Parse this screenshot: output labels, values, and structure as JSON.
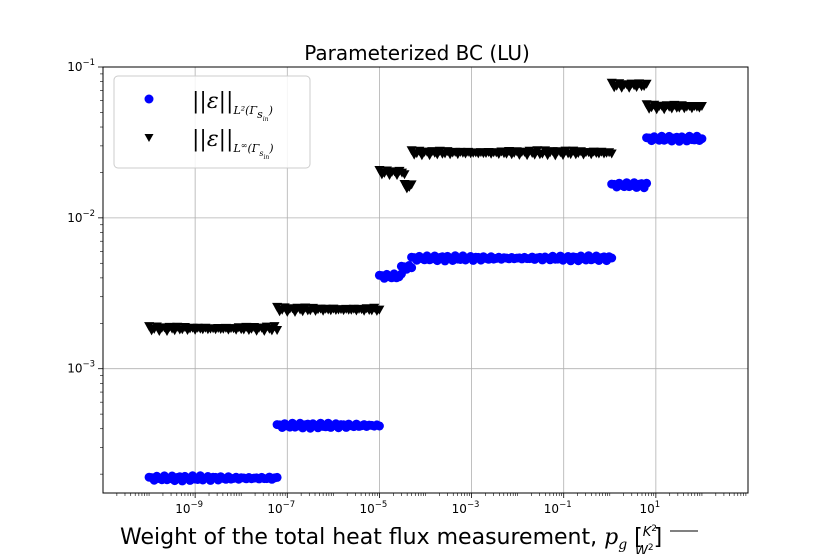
{
  "chart_data": {
    "type": "scatter",
    "title": "Parameterized BC (LU)",
    "xlabel": "Weight of the total heat flux measurement, p_g [K²/W²]",
    "xscale": "log",
    "yscale": "log",
    "xlim": [
      1e-11,
      1000
    ],
    "ylim": [
      0.00015,
      0.1
    ],
    "grid": true,
    "legend_position": "upper left",
    "x_ticks": [
      {
        "value": 1e-09,
        "base": "10",
        "exp": "−9"
      },
      {
        "value": 1e-07,
        "base": "10",
        "exp": "−7"
      },
      {
        "value": 1e-05,
        "base": "10",
        "exp": "−5"
      },
      {
        "value": 0.001,
        "base": "10",
        "exp": "−3"
      },
      {
        "value": 0.1,
        "base": "10",
        "exp": "−1"
      },
      {
        "value": 10,
        "base": "10",
        "exp": "1"
      }
    ],
    "y_ticks": [
      {
        "value": 0.001,
        "base": "10",
        "exp": "−3"
      },
      {
        "value": 0.01,
        "base": "10",
        "exp": "−2"
      },
      {
        "value": 0.1,
        "base": "10",
        "exp": "−1"
      }
    ],
    "series": [
      {
        "name": "||ε||_{L²(Γ_{s_in})}",
        "legend_main": "||ε||",
        "legend_sub": "L²(Γ",
        "legend_subsub": "s",
        "legend_subsubsub": "in",
        "legend_close": ")",
        "marker": "circle",
        "color": "#0000ff",
        "segments": [
          {
            "x_from": 1e-10,
            "x_to": 6e-08,
            "y": 0.000188
          },
          {
            "x_from": 6e-08,
            "x_to": 1e-05,
            "y": 0.00042
          },
          {
            "x_from": 1e-05,
            "x_to": 3e-05,
            "y": 0.0041
          },
          {
            "x_from": 3e-05,
            "x_to": 5e-05,
            "y": 0.0047
          },
          {
            "x_from": 5e-05,
            "x_to": 1.1,
            "y": 0.0054
          },
          {
            "x_from": 1.1,
            "x_to": 6.3,
            "y": 0.0165
          },
          {
            "x_from": 6.3,
            "x_to": 100,
            "y": 0.0335
          }
        ]
      },
      {
        "name": "||ε||_{L^∞(Γ_{s_in})}",
        "legend_main": "||ε||",
        "legend_sub": "L",
        "legend_sup": "∞",
        "legend_sub2": "(Γ",
        "legend_subsub": "s",
        "legend_subsubsub": "in",
        "legend_close": ")",
        "marker": "triangle-down",
        "color": "#000000",
        "segments": [
          {
            "x_from": 1e-10,
            "x_to": 6e-08,
            "y": 0.00183
          },
          {
            "x_from": 6e-08,
            "x_to": 1e-05,
            "y": 0.00245
          },
          {
            "x_from": 1e-05,
            "x_to": 3.5e-05,
            "y": 0.0198
          },
          {
            "x_from": 3.5e-05,
            "x_to": 5e-05,
            "y": 0.016
          },
          {
            "x_from": 5e-05,
            "x_to": 1.1,
            "y": 0.0268
          },
          {
            "x_from": 1.1,
            "x_to": 6.3,
            "y": 0.075
          },
          {
            "x_from": 6.3,
            "x_to": 100,
            "y": 0.054
          }
        ]
      }
    ]
  }
}
